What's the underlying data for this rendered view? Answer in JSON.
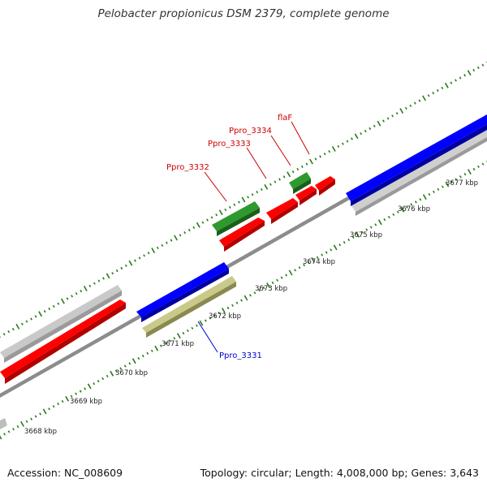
{
  "title": "Pelobacter propionicus DSM 2379, complete genome",
  "footer": {
    "accession": "Accession: NC_008609",
    "summary": "Topology: circular; Length: 4,008,000 bp; Genes: 3,643"
  },
  "colors": {
    "background": "#ffffff",
    "backbone": "#8c8c8c",
    "tick": "#2a7a1a",
    "cds_plus": "#ff0000",
    "cds_minus": "#0000ee",
    "rna": "#2a8a2a",
    "pseudo": "#bcbc80",
    "gray_feature": "#cfcfcf",
    "label_red": "#cc0000",
    "label_blue": "#0000cc"
  },
  "ruler_labels": [
    "3668 kbp",
    "3669 kbp",
    "3670 kbp",
    "3671 kbp",
    "3672 kbp",
    "3673 kbp",
    "3674 kbp",
    "3675 kbp",
    "3676 kbp",
    "3677 kbp"
  ],
  "gene_labels": [
    "Ppro_3331",
    "Ppro_3332",
    "Ppro_3333",
    "Ppro_3334",
    "flaF"
  ]
}
